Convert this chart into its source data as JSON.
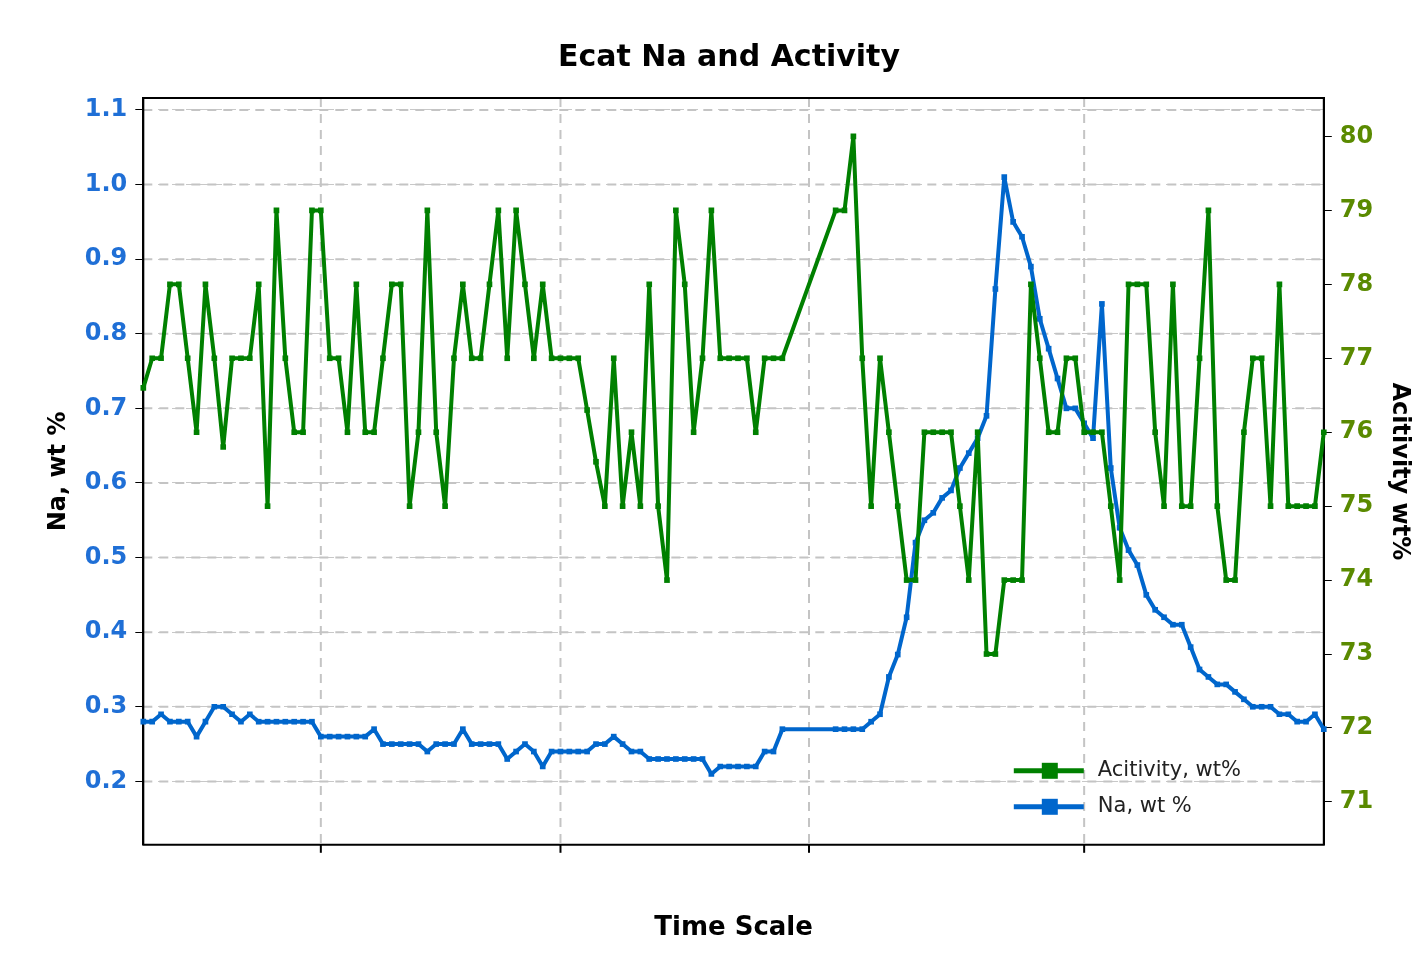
{
  "chart_data": {
    "type": "line",
    "title": "Ecat Na and Activity",
    "xlabel": "Time Scale",
    "ylabel": "Na, wt %",
    "y2label": "Acitivity wt%",
    "categories": [
      null,
      null,
      null,
      null,
      null,
      null,
      null,
      null,
      null,
      null,
      null,
      null,
      null,
      null,
      null,
      null,
      null,
      null,
      null,
      null,
      null,
      null,
      null,
      null,
      null,
      null,
      null,
      null,
      null,
      null,
      null,
      null,
      null,
      null,
      null,
      null,
      null,
      null,
      null,
      null,
      null,
      null,
      null,
      null,
      null,
      null,
      null,
      null,
      null,
      null,
      null,
      null,
      null,
      null,
      null,
      null,
      null,
      null,
      null,
      null,
      null,
      null,
      null,
      null,
      null,
      null,
      null,
      null,
      null,
      null,
      null,
      null,
      null,
      null,
      null,
      null,
      null,
      null,
      null,
      null,
      null,
      null,
      null,
      null,
      null,
      null,
      null,
      null,
      null,
      null,
      null,
      null,
      null,
      null,
      null,
      null,
      null,
      null,
      null,
      null,
      null,
      null,
      null,
      null,
      null,
      null,
      null,
      null,
      null,
      null,
      null,
      null,
      null,
      null,
      null,
      null,
      null,
      null,
      null,
      null,
      null,
      null,
      null,
      null,
      null,
      null,
      null,
      null,
      null,
      null,
      null,
      null,
      null,
      null
    ],
    "series": [
      {
        "name": "Acitivity, wt%",
        "color": "#008000",
        "axis": "y2",
        "values": [
          76.6,
          77,
          77,
          78,
          78,
          77,
          76,
          78,
          77,
          75.8,
          77,
          77,
          77,
          78,
          75,
          79,
          77,
          76,
          76,
          79,
          79,
          77,
          77,
          76,
          78,
          76,
          76,
          77,
          78,
          78,
          75,
          76,
          79,
          76,
          75,
          77,
          78,
          77,
          77,
          78,
          79,
          77,
          79,
          78,
          77,
          78,
          77,
          77,
          77,
          77,
          76.3,
          75.6,
          75,
          77,
          75,
          76,
          75,
          78,
          75,
          74,
          79,
          78,
          76,
          77,
          79,
          77,
          77,
          77,
          77,
          76,
          77,
          77,
          77,
          null,
          null,
          null,
          null,
          null,
          79,
          79,
          80,
          77,
          75,
          77,
          76,
          75,
          74,
          74,
          76,
          76,
          76,
          76,
          75,
          74,
          76,
          73,
          73,
          74,
          74,
          74,
          78,
          77,
          76,
          76,
          77,
          77,
          76,
          76,
          76,
          75,
          74,
          78,
          78,
          78,
          76,
          75,
          78,
          75,
          75,
          77,
          79,
          75,
          74,
          74,
          76,
          77,
          77,
          75,
          78,
          75,
          75,
          75,
          75,
          76
        ]
      },
      {
        "name": "Na, wt %",
        "color": "#0066cc",
        "values": [
          0.28,
          0.28,
          0.29,
          0.28,
          0.28,
          0.28,
          0.26,
          0.28,
          0.3,
          0.3,
          0.29,
          0.28,
          0.29,
          0.28,
          0.28,
          0.28,
          0.28,
          0.28,
          0.28,
          0.28,
          0.26,
          0.26,
          0.26,
          0.26,
          0.26,
          0.26,
          0.27,
          0.25,
          0.25,
          0.25,
          0.25,
          0.25,
          0.24,
          0.25,
          0.25,
          0.25,
          0.27,
          0.25,
          0.25,
          0.25,
          0.25,
          0.23,
          0.24,
          0.25,
          0.24,
          0.22,
          0.24,
          0.24,
          0.24,
          0.24,
          0.24,
          0.25,
          0.25,
          0.26,
          0.25,
          0.24,
          0.24,
          0.23,
          0.23,
          0.23,
          0.23,
          0.23,
          0.23,
          0.23,
          0.21,
          0.22,
          0.22,
          0.22,
          0.22,
          0.22,
          0.24,
          0.24,
          0.27,
          null,
          null,
          null,
          null,
          null,
          0.27,
          0.27,
          0.27,
          0.27,
          0.28,
          0.29,
          0.34,
          0.37,
          0.42,
          0.52,
          0.55,
          0.56,
          0.58,
          0.59,
          0.62,
          0.64,
          0.66,
          0.69,
          0.86,
          1.01,
          0.95,
          0.93,
          0.89,
          0.82,
          0.78,
          0.74,
          0.7,
          0.7,
          0.68,
          0.66,
          0.84,
          0.62,
          0.54,
          0.51,
          0.49,
          0.45,
          0.43,
          0.42,
          0.41,
          0.41,
          0.38,
          0.35,
          0.34,
          0.33,
          0.33,
          0.32,
          0.31,
          0.3,
          0.3,
          0.3,
          0.29,
          0.29,
          0.28,
          0.28,
          0.29,
          0.27
        ]
      }
    ],
    "ylim": [
      0.115,
      1.116
    ],
    "yticks": [
      0.2,
      0.3,
      0.4,
      0.5,
      0.6,
      0.7,
      0.8,
      0.9,
      {
        "value": 1,
        "label": "1.0"
      },
      1.1
    ],
    "y2lim": [
      70.42,
      80.52
    ],
    "y2ticks": [
      71,
      72,
      73,
      74,
      75,
      76,
      77,
      78,
      79,
      80
    ],
    "grid": true,
    "legend": "bottom right",
    "marker": "square",
    "line_style": "solid",
    "tick_labels": "y"
  }
}
